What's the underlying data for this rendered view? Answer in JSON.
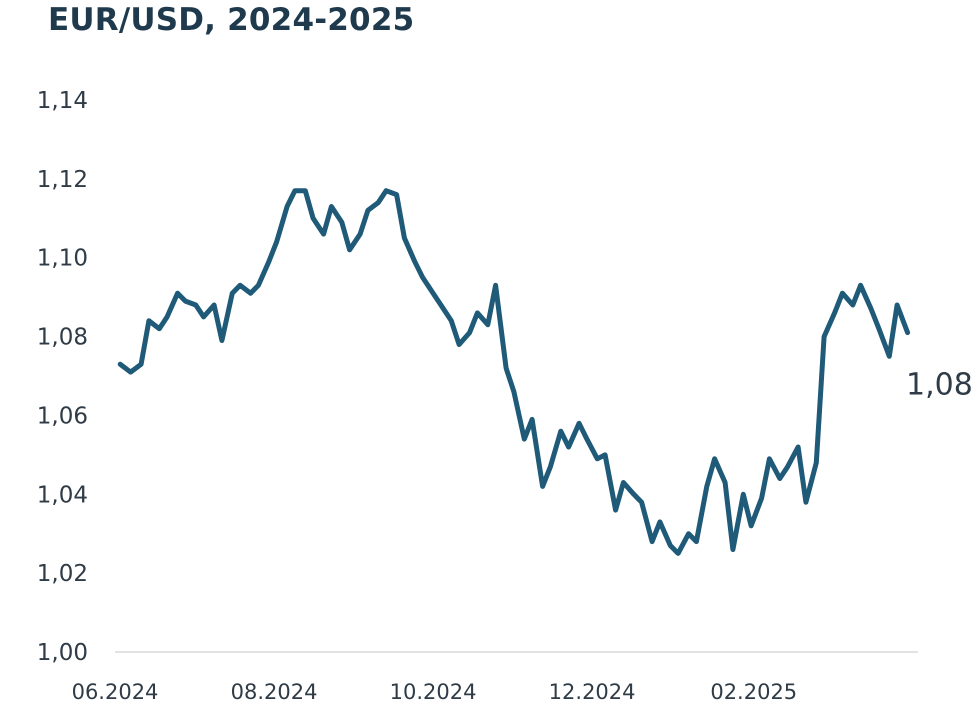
{
  "chart_data": {
    "type": "line",
    "title": "EUR/USD, 2024-2025",
    "xlabel": "",
    "ylabel": "",
    "ylim": [
      1.0,
      1.14
    ],
    "y_ticks": [
      "1,00",
      "1,02",
      "1,04",
      "1,06",
      "1,08",
      "1,10",
      "1,12",
      "1,14"
    ],
    "x_ticks": [
      "06.2024",
      "08.2024",
      "10.2024",
      "12.2024",
      "02.2025"
    ],
    "grid": false,
    "end_label": "1,08",
    "series": [
      {
        "color": "#1f5a78",
        "x": [
          "2024-06-03",
          "2024-06-07",
          "2024-06-11",
          "2024-06-14",
          "2024-06-18",
          "2024-06-21",
          "2024-06-25",
          "2024-06-28",
          "2024-07-02",
          "2024-07-05",
          "2024-07-09",
          "2024-07-12",
          "2024-07-16",
          "2024-07-19",
          "2024-07-23",
          "2024-07-26",
          "2024-07-30",
          "2024-08-02",
          "2024-08-06",
          "2024-08-09",
          "2024-08-13",
          "2024-08-16",
          "2024-08-20",
          "2024-08-23",
          "2024-08-27",
          "2024-08-30",
          "2024-09-03",
          "2024-09-06",
          "2024-09-10",
          "2024-09-13",
          "2024-09-17",
          "2024-09-20",
          "2024-09-24",
          "2024-09-27",
          "2024-10-01",
          "2024-10-04",
          "2024-10-08",
          "2024-10-11",
          "2024-10-15",
          "2024-10-18",
          "2024-10-22",
          "2024-10-25",
          "2024-10-29",
          "2024-11-01",
          "2024-11-05",
          "2024-11-08",
          "2024-11-12",
          "2024-11-15",
          "2024-11-19",
          "2024-11-22",
          "2024-11-26",
          "2024-11-29",
          "2024-12-03",
          "2024-12-06",
          "2024-12-10",
          "2024-12-13",
          "2024-12-17",
          "2024-12-20",
          "2024-12-24",
          "2024-12-27",
          "2024-12-31",
          "2025-01-03",
          "2025-01-07",
          "2025-01-10",
          "2025-01-14",
          "2025-01-17",
          "2025-01-21",
          "2025-01-24",
          "2025-01-28",
          "2025-01-31",
          "2025-02-04",
          "2025-02-07",
          "2025-02-11",
          "2025-02-14",
          "2025-02-18",
          "2025-02-21",
          "2025-02-25",
          "2025-02-28",
          "2025-03-04",
          "2025-03-07",
          "2025-03-11",
          "2025-03-14",
          "2025-03-18",
          "2025-03-21",
          "2025-03-25",
          "2025-03-28",
          "2025-04-01"
        ],
        "y": [
          1.073,
          1.071,
          1.073,
          1.084,
          1.082,
          1.085,
          1.091,
          1.089,
          1.088,
          1.085,
          1.088,
          1.079,
          1.091,
          1.093,
          1.091,
          1.093,
          1.099,
          1.104,
          1.113,
          1.117,
          1.117,
          1.11,
          1.106,
          1.113,
          1.109,
          1.102,
          1.106,
          1.112,
          1.114,
          1.117,
          1.116,
          1.105,
          1.099,
          1.095,
          1.091,
          1.088,
          1.084,
          1.078,
          1.081,
          1.086,
          1.083,
          1.093,
          1.072,
          1.066,
          1.054,
          1.059,
          1.042,
          1.047,
          1.056,
          1.052,
          1.058,
          1.054,
          1.049,
          1.05,
          1.036,
          1.043,
          1.04,
          1.038,
          1.028,
          1.033,
          1.027,
          1.025,
          1.03,
          1.028,
          1.042,
          1.049,
          1.043,
          1.026,
          1.04,
          1.032,
          1.039,
          1.049,
          1.044,
          1.047,
          1.052,
          1.038,
          1.048,
          1.08,
          1.086,
          1.091,
          1.088,
          1.093,
          1.087,
          1.082,
          1.075,
          1.088,
          1.081
        ]
      }
    ]
  }
}
